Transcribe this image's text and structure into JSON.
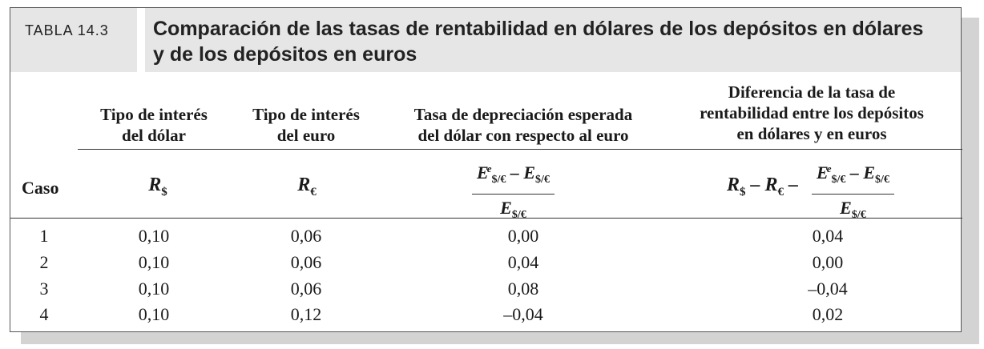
{
  "table": {
    "tag": "TABLA 14.3",
    "title_line1": "Comparación de las tasas de rentabilidad en dólares de los depósitos en dólares",
    "title_line2": "y de los depósitos en euros",
    "headers": {
      "col1_l1": "Tipo de interés",
      "col1_l2": "del dólar",
      "col2_l1": "Tipo de interés",
      "col2_l2": "del euro",
      "col3_l1": "Tasa de depreciación esperada",
      "col3_l2": "del dólar con respecto al euro",
      "col4_l1": "Diferencia de la tasa de",
      "col4_l2": "rentabilidad entre los depósitos",
      "col4_l3": "en dólares y en euros"
    },
    "caso_label": "Caso",
    "symbols": {
      "r_dollar": "R",
      "r_dollar_sub": "$",
      "r_euro": "R",
      "r_euro_sub": "€",
      "frac_num_E": "E",
      "frac_sub": "$/€",
      "frac_sup": "e",
      "minus": " – ",
      "r4_prefix": "R",
      "r4_sub1": "$",
      "r4_mid": " – R",
      "r4_sub2": "€",
      "r4_minus": " –"
    },
    "rows": [
      {
        "caso": "1",
        "rd": "0,10",
        "re": "0,06",
        "dep": "0,00",
        "dif": "0,04"
      },
      {
        "caso": "2",
        "rd": "0,10",
        "re": "0,06",
        "dep": "0,04",
        "dif": "0,00"
      },
      {
        "caso": "3",
        "rd": "0,10",
        "re": "0,06",
        "dep": "0,08",
        "dif": "–0,04"
      },
      {
        "caso": "4",
        "rd": "0,10",
        "re": "0,12",
        "dep": "–0,04",
        "dif": "0,02"
      }
    ]
  }
}
